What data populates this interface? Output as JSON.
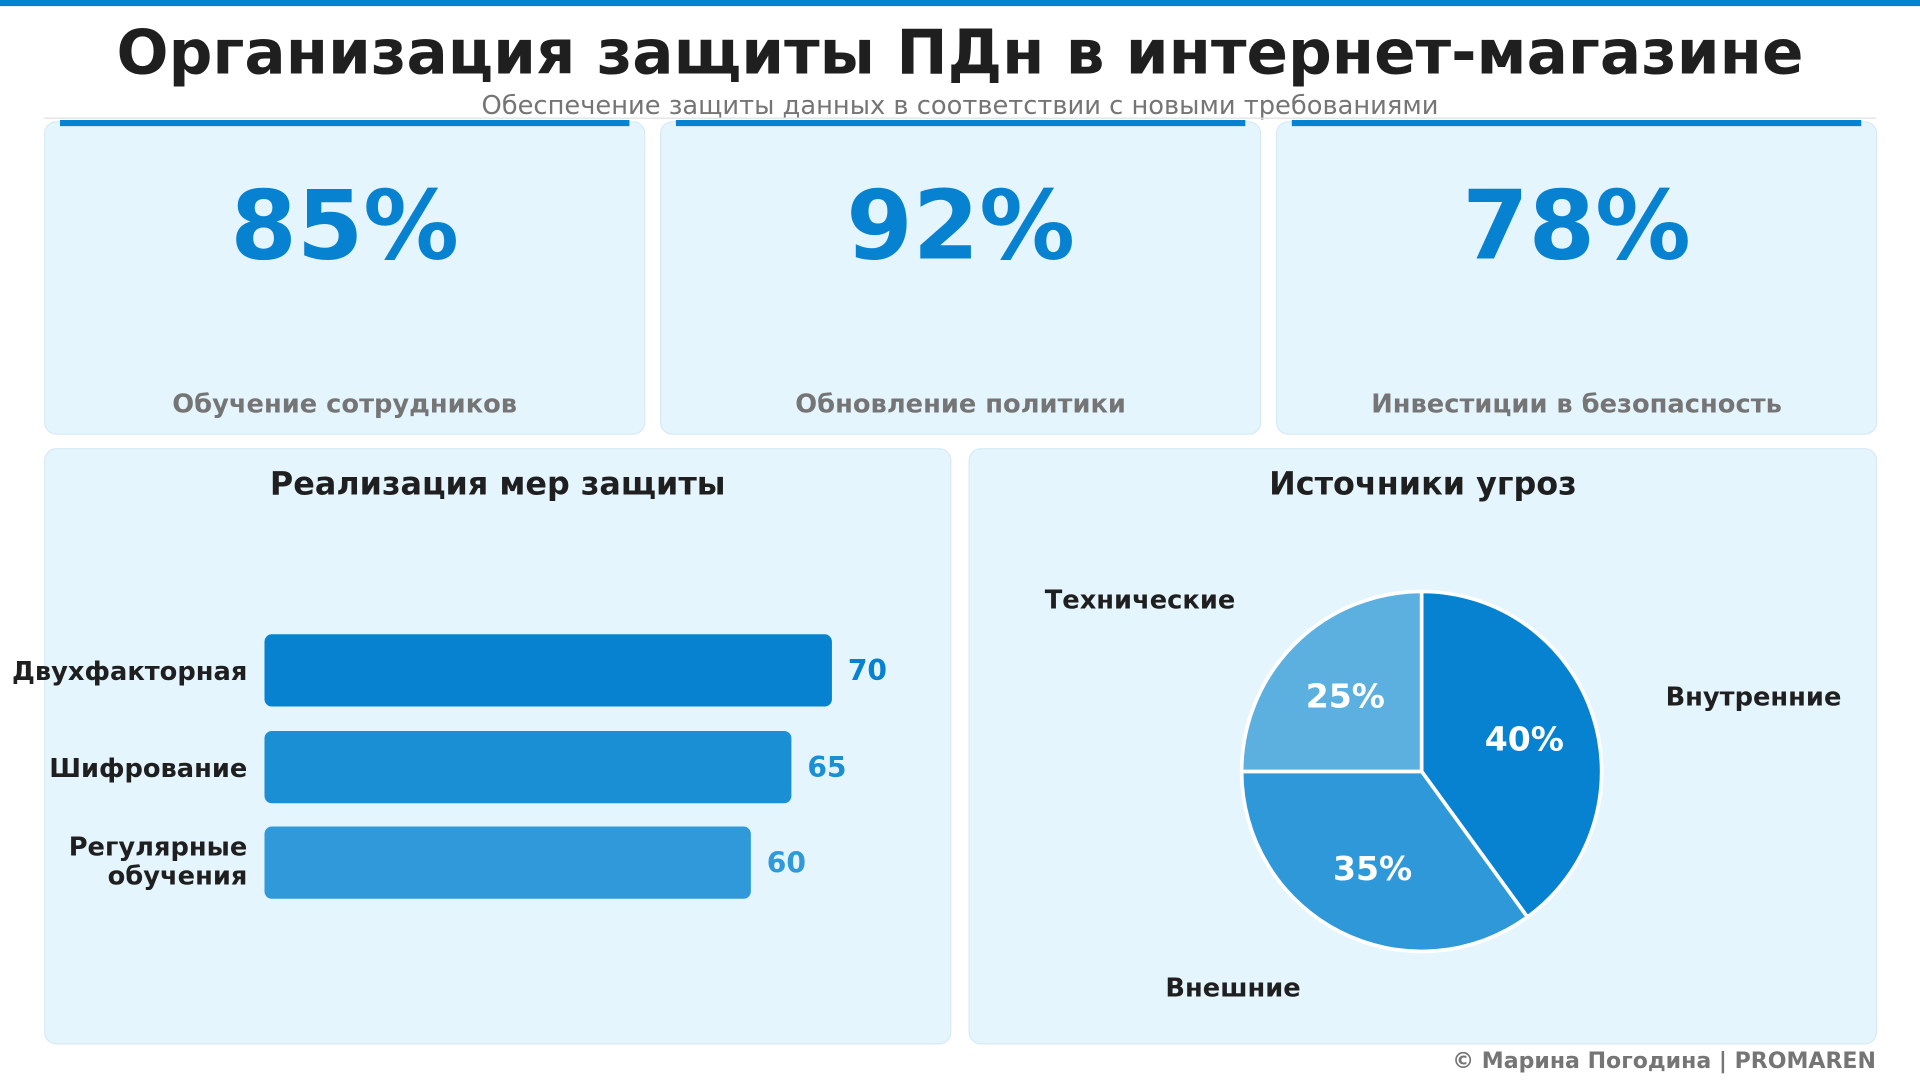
{
  "header": {
    "title": "Организация защиты ПДн в интернет-магазине",
    "subtitle": "Обеспечение защиты данных в соответствии с новыми требованиями"
  },
  "kpis": [
    {
      "value": "85%",
      "label": "Обучение сотрудников"
    },
    {
      "value": "92%",
      "label": "Обновление политики"
    },
    {
      "value": "78%",
      "label": "Инвестиции в безопасность"
    }
  ],
  "colors": {
    "accent": "#0682d0",
    "card_bg": "#e5f5fe",
    "text": "#1f1f1f",
    "muted": "#757575"
  },
  "chart_data": [
    {
      "type": "bar",
      "orientation": "horizontal",
      "title": "Реализация мер защиты",
      "categories": [
        "Двухфакторная",
        "Шифрование",
        "Регулярные обучения"
      ],
      "values": [
        70,
        65,
        60
      ],
      "colors": [
        "#0682d0",
        "#1b8fd4",
        "#2f99d9"
      ],
      "grid": false
    },
    {
      "type": "pie",
      "title": "Источники угроз",
      "categories": [
        "Внутренние",
        "Внешние",
        "Технические"
      ],
      "values": [
        40,
        35,
        25
      ],
      "labels": [
        "40%",
        "35%",
        "25%"
      ],
      "colors": [
        "#0682d0",
        "#2e98d8",
        "#5cb0e0"
      ]
    }
  ],
  "footer": "© Марина Погодина | PROMAREN"
}
